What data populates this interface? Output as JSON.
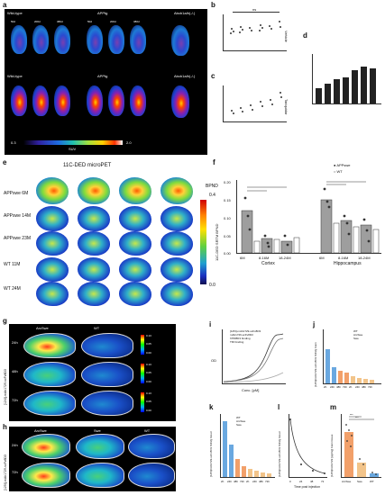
{
  "panel_a": {
    "letter": "a",
    "top_labels": [
      "Wild-type",
      "APPtg",
      "Abcb1a/b(-/-)"
    ],
    "bottom_labels": [
      "Wild-type",
      "APPtg",
      "Abcb1a/b(-/-)"
    ],
    "ages": [
      "50d",
      "200d",
      "380d"
    ],
    "ages_right": [
      "50d",
      "200d",
      "380d"
    ],
    "colorbar_min": "0.3",
    "colorbar_max": "2.0",
    "colorbar_unit": "SUV"
  },
  "panel_b": {
    "letter": "b",
    "side_label": "Vehicle",
    "ns_label": "ns"
  },
  "panel_c": {
    "letter": "c",
    "side_label": "Tariquidar"
  },
  "panel_d": {
    "letter": "d"
  },
  "panel_e": {
    "letter": "e",
    "title": "11C-DED microPET",
    "rows": [
      "APPswe 6M",
      "APPswe 14M",
      "APPswe 23M",
      "WT 11M",
      "WT 24M"
    ],
    "cbar_label": "BPND",
    "cbar_max": "0.4",
    "cbar_min": "0.0"
  },
  "panel_f": {
    "letter": "f",
    "legend": [
      "APPswe",
      "WT"
    ],
    "ylabel": "11C-DED SRTM BPND",
    "yticks": [
      "0.20",
      "0.15",
      "0.10",
      "0.05",
      "0.00"
    ],
    "xticks": [
      "6M",
      "8-16M",
      "18-24M",
      "6M",
      "8-16M",
      "18-24M"
    ],
    "groups": [
      "Cortex",
      "Hippocampus"
    ]
  },
  "panel_g": {
    "letter": "g",
    "cols": [
      "ArcSwe",
      "WT"
    ],
    "rows": [
      "24h",
      "48h",
      "72h"
    ],
    "side_label": "[124I]-mAb1729-scFv8D3",
    "scale_top": "0.13",
    "scale_mid": "0.05",
    "scale_bot": "0.00"
  },
  "panel_h": {
    "letter": "h",
    "cols": [
      "ArcSwe",
      "Swe",
      "WT"
    ],
    "rows": [
      "24h",
      "72h"
    ],
    "side_label": "[125I]-mAb1729-scFv8D3"
  },
  "panel_i": {
    "letter": "i",
    "ylabel": "OD",
    "xlabel": "Conc. [pM]",
    "legend": [
      "[125I]-mAb1729-scFv8D3",
      "mAb1729-scFv8D3",
      "hTfR8D3 binding",
      "TfR binding"
    ]
  },
  "panel_j": {
    "letter": "j",
    "ylabel": "[125I]mAb1729-scFv8D3 %ID/g brain",
    "legend": [
      "WT",
      "ArcSwe",
      "Swe"
    ],
    "xticks": [
      "2h",
      "24h",
      "48h",
      "72h",
      "2h",
      "24h",
      "48h",
      "72h"
    ]
  },
  "panel_k": {
    "letter": "k",
    "ylabel": "[125I]mAb1729-scFv8D3 %ID/g blood",
    "legend": [
      "WT",
      "ArcSwe",
      "Swe"
    ],
    "xticks": [
      "2h",
      "24h",
      "48h",
      "72h",
      "2h",
      "24h",
      "48h",
      "72h"
    ]
  },
  "panel_l": {
    "letter": "l",
    "ylabel": "[125I]mAb1729-scFv8D3 %ID/g blood",
    "xlabel": "Time post injection",
    "xticks": [
      "0",
      "24",
      "48",
      "72"
    ]
  },
  "panel_m": {
    "letter": "m",
    "ylabel": "[125I]mAb1729 [pg/mg] brain tissue",
    "xticks": [
      "ArcSwe",
      "Swe",
      "WT"
    ],
    "stars": [
      "***",
      "***"
    ]
  }
}
